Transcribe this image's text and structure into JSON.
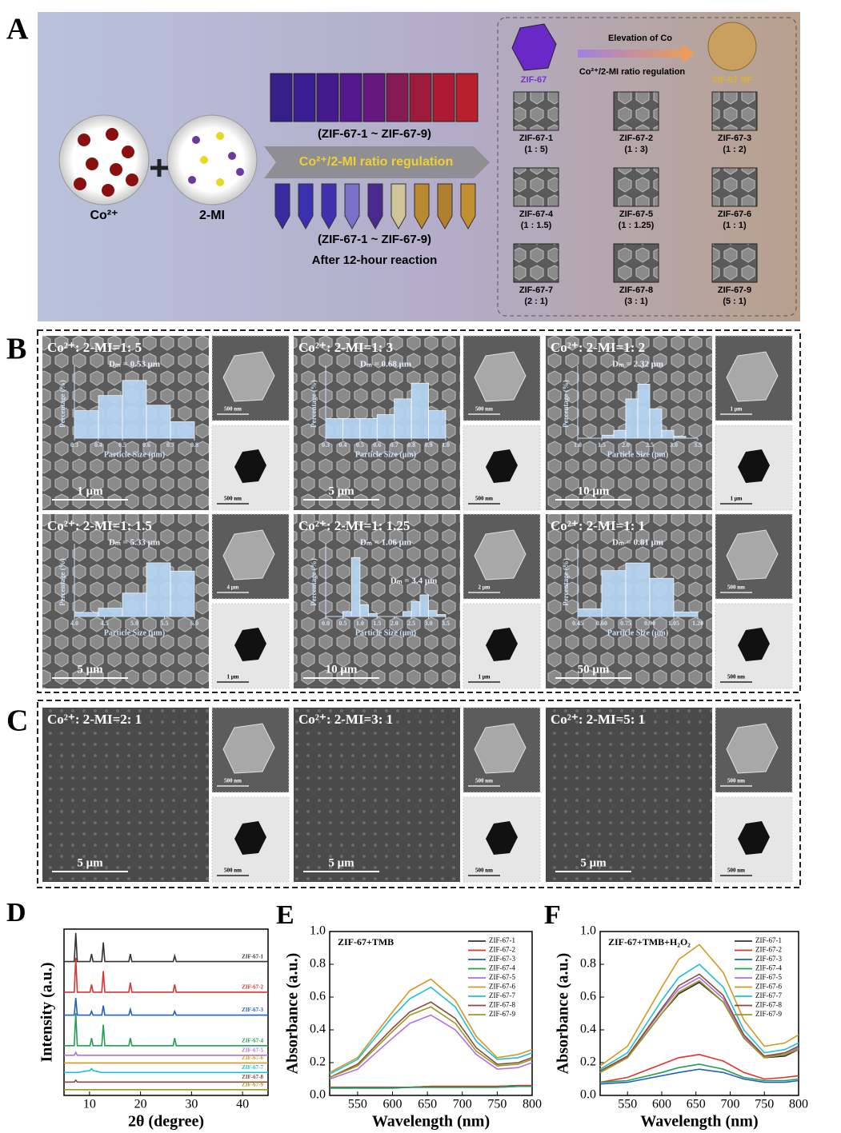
{
  "panel_a": {
    "label": "A",
    "reagents": [
      "Co²⁺",
      "2-MI"
    ],
    "vials_top_caption": "(ZIF-67-1 ~ ZIF-67-9)",
    "arrow_text": "Co²⁺/2-MI ratio regulation",
    "vials_bottom_caption": "(ZIF-67-1 ~ ZIF-67-9)",
    "reaction_note": "After 12-hour reaction",
    "trend_title": "Elevation of Co",
    "trend_subtitle": "Co²⁺/2-MI ratio regulation",
    "start_label": "ZIF-67",
    "end_label": "ZIF-67 NF",
    "samples": [
      {
        "name": "ZIF-67-1",
        "ratio": "(1 : 5)"
      },
      {
        "name": "ZIF-67-2",
        "ratio": "(1 : 3)"
      },
      {
        "name": "ZIF-67-3",
        "ratio": "(1 : 2)"
      },
      {
        "name": "ZIF-67-4",
        "ratio": "(1 : 1.5)"
      },
      {
        "name": "ZIF-67-5",
        "ratio": "(1 : 1.25)"
      },
      {
        "name": "ZIF-67-6",
        "ratio": "(1 : 1)"
      },
      {
        "name": "ZIF-67-7",
        "ratio": "(2 : 1)"
      },
      {
        "name": "ZIF-67-8",
        "ratio": "(3 : 1)"
      },
      {
        "name": "ZIF-67-9",
        "ratio": "(5 : 1)"
      }
    ]
  },
  "panel_b": {
    "label": "B",
    "cells": [
      {
        "condition": "Co²⁺: 2-MI=1: 5",
        "scale_main": "1 μm",
        "scale_sem": "500 nm",
        "scale_tem": "500 nm",
        "histogram": {
          "type": "histogram",
          "x_label": "Particle Size (μm)",
          "y_label": "Percentage (%)",
          "annotations": [
            "Dₘ = 0.53 μm"
          ],
          "bins": [
            0.3,
            0.4,
            0.5,
            0.6,
            0.7,
            0.8
          ],
          "values": [
            20,
            31,
            42,
            24,
            12
          ],
          "xlim": [
            0.3,
            0.8
          ],
          "ylim": [
            0,
            50
          ],
          "xticks": [
            0.3,
            0.4,
            0.5,
            0.6,
            0.7,
            0.8
          ],
          "color": "#b7d6f5"
        }
      },
      {
        "condition": "Co²⁺: 2-MI=1: 3",
        "scale_main": "5 μm",
        "scale_sem": "500 nm",
        "scale_tem": "500 nm",
        "histogram": {
          "type": "histogram",
          "x_label": "Particle Size (μm)",
          "y_label": "Percentage (%)",
          "annotations": [
            "Dₘ = 0.68 μm"
          ],
          "bins": [
            0.3,
            0.4,
            0.5,
            0.6,
            0.7,
            0.8,
            0.9,
            1.0
          ],
          "values": [
            10,
            10,
            10,
            12,
            20,
            28,
            14
          ],
          "xlim": [
            0.3,
            1.0
          ],
          "ylim": [
            0,
            35
          ],
          "xticks": [
            0.3,
            0.4,
            0.5,
            0.6,
            0.7,
            0.8,
            0.9,
            {
              "value": 1,
              "label": "1.0"
            }
          ],
          "color": "#b7d6f5"
        }
      },
      {
        "condition": "Co²⁺: 2-MI=1: 2",
        "scale_main": "10 μm",
        "scale_sem": "1 μm",
        "scale_tem": "1 μm",
        "histogram": {
          "type": "histogram",
          "x_label": "Particle Size (μm)",
          "y_label": "Percentage (%)",
          "annotations": [
            "Dₘ = 2.32 μm"
          ],
          "bins": [
            1.5,
            1.75,
            2.0,
            2.25,
            2.5,
            2.75,
            3.0,
            3.25
          ],
          "values": [
            3,
            8,
            40,
            55,
            30,
            8,
            2
          ],
          "xlim": [
            1.0,
            3.5
          ],
          "ylim": [
            0,
            70
          ],
          "xticks": [
            {
              "value": 1,
              "label": "1.0"
            },
            1.5,
            {
              "value": 2,
              "label": "2.0"
            },
            2.5,
            {
              "value": 3,
              "label": "3.0"
            },
            3.5
          ],
          "color": "#b7d6f5"
        }
      },
      {
        "condition": "Co²⁺: 2-MI=1: 1.5",
        "scale_main": "5 μm",
        "scale_sem": "4 μm",
        "scale_tem": "1 μm",
        "histogram": {
          "type": "histogram",
          "x_label": "Particle Size (μm)",
          "y_label": "Percentage (%)",
          "annotations": [
            "Dₘ = 5.33 μm"
          ],
          "bins": [
            4.0,
            4.4,
            4.8,
            5.2,
            5.6,
            6.0
          ],
          "values": [
            3,
            6,
            17,
            39,
            33
          ],
          "xlim": [
            4.0,
            6.0
          ],
          "ylim": [
            0,
            50
          ],
          "xticks": [
            {
              "value": 4,
              "label": "4.0"
            },
            4.5,
            {
              "value": 5,
              "label": "5.0"
            },
            5.5,
            {
              "value": 6,
              "label": "6.0"
            }
          ],
          "color": "#b7d6f5"
        }
      },
      {
        "condition": "Co²⁺: 2-MI=1: 1.25",
        "scale_main": "10 μm",
        "scale_sem": "2 μm",
        "scale_tem": "1 μm",
        "histogram": {
          "type": "histogram",
          "x_label": "Particle Size (μm)",
          "y_label": "Percentage (%)",
          "annotations": [
            "Dₘ = 1.06 μm",
            "Dₘ = 3.4 μm"
          ],
          "bins": [
            0.5,
            0.75,
            1.0,
            1.25,
            1.5,
            1.75,
            2.0,
            2.25,
            2.5,
            2.75,
            3.0,
            3.25,
            3.5
          ],
          "values": [
            5,
            60,
            12,
            3,
            0,
            0,
            0,
            5,
            15,
            22,
            6,
            2
          ],
          "xlim": [
            0.0,
            3.5
          ],
          "ylim": [
            0,
            70
          ],
          "xticks": [
            {
              "value": 0,
              "label": "0.0"
            },
            0.5,
            {
              "value": 1,
              "label": "1.0"
            },
            1.5,
            {
              "value": 2,
              "label": "2.0"
            },
            2.5,
            {
              "value": 3,
              "label": "3.0"
            },
            3.5
          ],
          "color": "#b7d6f5"
        }
      },
      {
        "condition": "Co²⁺: 2-MI=1: 1",
        "scale_main": "50 μm",
        "scale_sem": "500 nm",
        "scale_tem": "500 nm",
        "histogram": {
          "type": "histogram",
          "x_label": "Particle Size (μm)",
          "y_label": "Percentage (%)",
          "annotations": [
            "Dₘ = 0.81 μm"
          ],
          "bins": [
            0.45,
            0.6,
            0.75,
            0.9,
            1.05,
            1.2
          ],
          "values": [
            5,
            30,
            35,
            25,
            3
          ],
          "xlim": [
            0.45,
            1.2
          ],
          "ylim": [
            0,
            45
          ],
          "xticks": [
            0.45,
            {
              "value": 0.6,
              "label": "0.60"
            },
            0.75,
            {
              "value": 0.9,
              "label": "0.90"
            },
            1.05,
            {
              "value": 1.2,
              "label": "1.20"
            }
          ],
          "color": "#b7d6f5"
        }
      }
    ]
  },
  "panel_c": {
    "label": "C",
    "cells": [
      {
        "condition": "Co²⁺: 2-MI=2: 1",
        "scale_main": "5 μm",
        "scale_sem": "500 nm",
        "scale_tem": "500 nm"
      },
      {
        "condition": "Co²⁺: 2-MI=3: 1",
        "scale_main": "5 μm",
        "scale_sem": "500 nm",
        "scale_tem": "500 nm"
      },
      {
        "condition": "Co²⁺: 2-MI=5: 1",
        "scale_main": "5 μm",
        "scale_sem": "500 nm",
        "scale_tem": "500 nm"
      }
    ]
  },
  "chart_data": [
    {
      "panel_label": "D",
      "type": "line",
      "x_label": "2θ (degree)",
      "y_label": "Intensity (a.u.)",
      "xlim": [
        5,
        45
      ],
      "ylim": [
        1.5,
        10.2
      ],
      "xticks": [
        10,
        20,
        30,
        40
      ],
      "legend": "inline",
      "x": [
        5,
        7.0,
        7.3,
        7.6,
        10.1,
        10.4,
        10.7,
        12.4,
        12.7,
        13.0,
        17.7,
        18.0,
        18.3,
        26.4,
        26.7,
        27.0,
        45
      ],
      "series": [
        {
          "name": "ZIF-67-1",
          "color": "#333333",
          "values": [
            8.5,
            8.5,
            10.0,
            8.5,
            8.5,
            8.9,
            8.5,
            8.5,
            9.5,
            8.5,
            8.5,
            8.9,
            8.5,
            8.5,
            8.8,
            8.5,
            8.5
          ]
        },
        {
          "name": "ZIF-67-2",
          "color": "#e03030",
          "values": [
            6.9,
            6.9,
            8.7,
            6.9,
            6.9,
            7.3,
            6.9,
            6.9,
            8.0,
            6.9,
            6.9,
            7.4,
            6.9,
            6.9,
            7.3,
            6.9,
            6.9
          ]
        },
        {
          "name": "ZIF-67-3",
          "color": "#2060c0",
          "values": [
            5.7,
            5.7,
            6.6,
            5.7,
            5.7,
            5.9,
            5.7,
            5.7,
            6.2,
            5.7,
            5.7,
            6.0,
            5.7,
            5.7,
            5.9,
            5.7,
            5.7
          ]
        },
        {
          "name": "ZIF-67-4",
          "color": "#20a050",
          "values": [
            4.1,
            4.1,
            5.8,
            4.1,
            4.1,
            4.5,
            4.1,
            4.1,
            5.2,
            4.1,
            4.1,
            4.5,
            4.1,
            4.1,
            4.5,
            4.1,
            4.1
          ]
        },
        {
          "name": "ZIF-67-5",
          "color": "#b070e0",
          "values": [
            3.6,
            3.6,
            3.75,
            3.6,
            3.6,
            3.6,
            3.6,
            3.6,
            3.6,
            3.6,
            3.6,
            3.6,
            3.6,
            3.6,
            3.6,
            3.6,
            3.6
          ]
        },
        {
          "name": "ZIF-67-6",
          "color": "#d09a20",
          "values": [
            3.2,
            3.2,
            3.2,
            3.2,
            3.2,
            3.2,
            3.2,
            3.2,
            3.2,
            3.2,
            3.2,
            3.2,
            3.2,
            3.2,
            3.2,
            3.2,
            3.2
          ]
        },
        {
          "name": "ZIF-67-7",
          "color": "#20c0d0",
          "values": [
            2.7,
            2.7,
            2.7,
            2.7,
            2.8,
            2.9,
            2.8,
            2.7,
            2.7,
            2.7,
            2.7,
            2.7,
            2.7,
            2.7,
            2.7,
            2.7,
            2.7
          ]
        },
        {
          "name": "ZIF-67-8",
          "color": "#8a4a3a",
          "values": [
            2.2,
            2.2,
            2.3,
            2.2,
            2.2,
            2.2,
            2.2,
            2.2,
            2.2,
            2.2,
            2.2,
            2.2,
            2.2,
            2.2,
            2.2,
            2.2,
            2.2
          ]
        },
        {
          "name": "ZIF-67-9",
          "color": "#9a9a20",
          "values": [
            1.8,
            1.8,
            1.8,
            1.8,
            1.8,
            1.8,
            1.8,
            1.8,
            1.8,
            1.8,
            1.8,
            1.8,
            1.8,
            1.8,
            1.8,
            1.8,
            1.8
          ]
        }
      ]
    },
    {
      "panel_label": "E",
      "type": "line",
      "annotation": "ZIF-67+TMB",
      "x_label": "Wavelength (nm)",
      "y_label": "Absorbance (a.u.)",
      "xlim": [
        510,
        800
      ],
      "ylim": [
        0,
        1.0
      ],
      "xticks": [
        550,
        600,
        650,
        700,
        750,
        800
      ],
      "yticks": [
        {
          "value": 0,
          "label": "0.0"
        },
        0.2,
        0.4,
        0.6,
        0.8,
        {
          "value": 1,
          "label": "1.0"
        }
      ],
      "legend": "upper right",
      "x": [
        510,
        550,
        600,
        625,
        655,
        690,
        720,
        750,
        780,
        800
      ],
      "series": [
        {
          "name": "ZIF-67-1",
          "color": "#333333",
          "values": [
            0.05,
            0.05,
            0.05,
            0.05,
            0.055,
            0.055,
            0.055,
            0.055,
            0.06,
            0.06
          ]
        },
        {
          "name": "ZIF-67-2",
          "color": "#e03030",
          "values": [
            0.05,
            0.05,
            0.05,
            0.05,
            0.055,
            0.055,
            0.055,
            0.055,
            0.06,
            0.06
          ]
        },
        {
          "name": "ZIF-67-3",
          "color": "#2060c0",
          "values": [
            0.045,
            0.045,
            0.045,
            0.05,
            0.05,
            0.05,
            0.05,
            0.05,
            0.055,
            0.055
          ]
        },
        {
          "name": "ZIF-67-4",
          "color": "#20a050",
          "values": [
            0.045,
            0.045,
            0.045,
            0.05,
            0.05,
            0.05,
            0.05,
            0.05,
            0.055,
            0.055
          ]
        },
        {
          "name": "ZIF-67-5",
          "color": "#b070e0",
          "values": [
            0.1,
            0.16,
            0.35,
            0.44,
            0.49,
            0.4,
            0.25,
            0.16,
            0.17,
            0.2
          ]
        },
        {
          "name": "ZIF-67-6",
          "color": "#d09a20",
          "values": [
            0.14,
            0.23,
            0.51,
            0.64,
            0.71,
            0.58,
            0.36,
            0.23,
            0.25,
            0.28
          ]
        },
        {
          "name": "ZIF-67-7",
          "color": "#20c0d0",
          "values": [
            0.13,
            0.22,
            0.48,
            0.59,
            0.66,
            0.54,
            0.33,
            0.22,
            0.23,
            0.26
          ]
        },
        {
          "name": "ZIF-67-8",
          "color": "#8a4a3a",
          "values": [
            0.11,
            0.19,
            0.41,
            0.51,
            0.57,
            0.47,
            0.29,
            0.19,
            0.2,
            0.23
          ]
        },
        {
          "name": "ZIF-67-9",
          "color": "#9a9a20",
          "values": [
            0.11,
            0.18,
            0.39,
            0.49,
            0.54,
            0.44,
            0.27,
            0.18,
            0.19,
            0.22
          ]
        }
      ]
    },
    {
      "panel_label": "F",
      "type": "line",
      "annotation": "ZIF-67+TMB+H₂O₂",
      "x_label": "Wavelength (nm)",
      "y_label": "Absorbance (a.u.)",
      "xlim": [
        510,
        800
      ],
      "ylim": [
        0,
        1.0
      ],
      "xticks": [
        550,
        600,
        650,
        700,
        750,
        800
      ],
      "yticks": [
        {
          "value": 0,
          "label": "0.0"
        },
        0.2,
        0.4,
        0.6,
        0.8,
        {
          "value": 1,
          "label": "1.0"
        }
      ],
      "legend": "upper right",
      "x": [
        510,
        550,
        600,
        625,
        655,
        690,
        720,
        750,
        780,
        800
      ],
      "series": [
        {
          "name": "ZIF-67-1",
          "color": "#333333",
          "values": [
            0.14,
            0.23,
            0.5,
            0.62,
            0.69,
            0.57,
            0.35,
            0.23,
            0.24,
            0.28
          ]
        },
        {
          "name": "ZIF-67-2",
          "color": "#e03030",
          "values": [
            0.08,
            0.11,
            0.19,
            0.23,
            0.25,
            0.21,
            0.14,
            0.1,
            0.11,
            0.12
          ]
        },
        {
          "name": "ZIF-67-3",
          "color": "#2060c0",
          "values": [
            0.07,
            0.08,
            0.12,
            0.14,
            0.16,
            0.14,
            0.1,
            0.08,
            0.08,
            0.09
          ]
        },
        {
          "name": "ZIF-67-4",
          "color": "#20a050",
          "values": [
            0.08,
            0.09,
            0.14,
            0.17,
            0.19,
            0.16,
            0.11,
            0.09,
            0.09,
            0.1
          ]
        },
        {
          "name": "ZIF-67-5",
          "color": "#b070e0",
          "values": [
            0.14,
            0.24,
            0.52,
            0.65,
            0.72,
            0.59,
            0.36,
            0.24,
            0.25,
            0.29
          ]
        },
        {
          "name": "ZIF-67-6",
          "color": "#d09a20",
          "values": [
            0.18,
            0.3,
            0.66,
            0.83,
            0.92,
            0.75,
            0.46,
            0.3,
            0.32,
            0.37
          ]
        },
        {
          "name": "ZIF-67-7",
          "color": "#20c0d0",
          "values": [
            0.16,
            0.26,
            0.58,
            0.72,
            0.8,
            0.66,
            0.4,
            0.26,
            0.28,
            0.32
          ]
        },
        {
          "name": "ZIF-67-8",
          "color": "#8a4a3a",
          "values": [
            0.15,
            0.24,
            0.53,
            0.67,
            0.74,
            0.61,
            0.37,
            0.24,
            0.26,
            0.3
          ]
        },
        {
          "name": "ZIF-67-9",
          "color": "#9a9a20",
          "values": [
            0.14,
            0.23,
            0.5,
            0.63,
            0.7,
            0.57,
            0.35,
            0.23,
            0.25,
            0.28
          ]
        }
      ]
    }
  ]
}
